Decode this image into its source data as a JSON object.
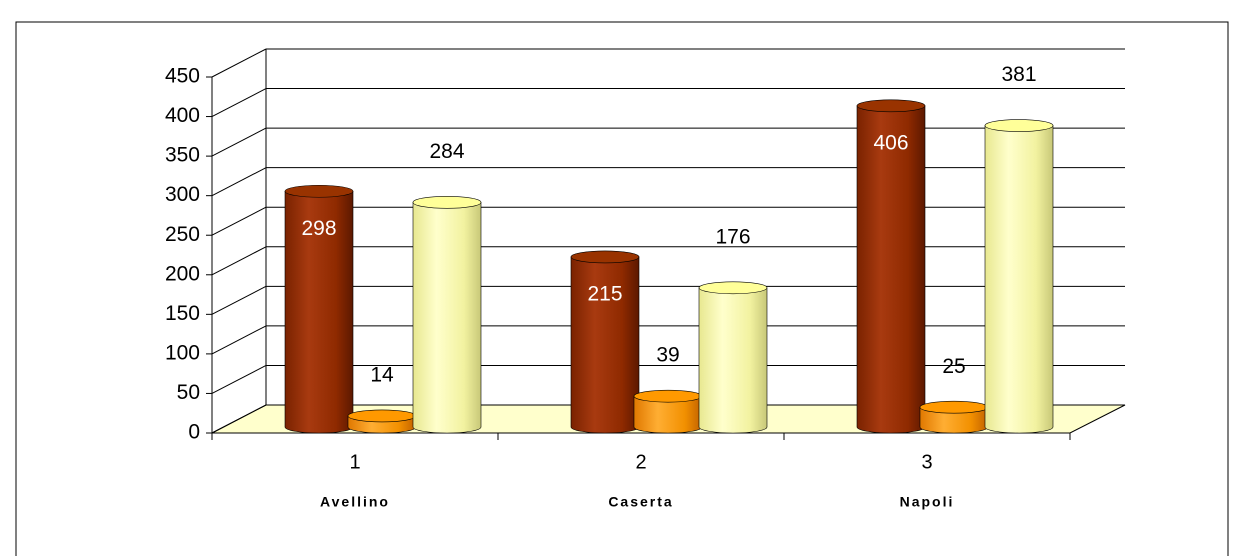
{
  "chart_data": {
    "type": "bar3d",
    "categories": [
      "1",
      "2",
      "3"
    ],
    "category_names": [
      "Avellino",
      "Caserta",
      "Napoli"
    ],
    "series": [
      {
        "color": "#993300",
        "values": [
          298,
          215,
          406
        ]
      },
      {
        "color": "#ff9900",
        "values": [
          14,
          39,
          25
        ]
      },
      {
        "color": "#ffff99",
        "values": [
          284,
          176,
          381
        ]
      }
    ],
    "ylim": [
      0,
      450
    ],
    "yticks": [
      0,
      50,
      100,
      150,
      200,
      250,
      300,
      350,
      400,
      450
    ],
    "grid": true
  }
}
